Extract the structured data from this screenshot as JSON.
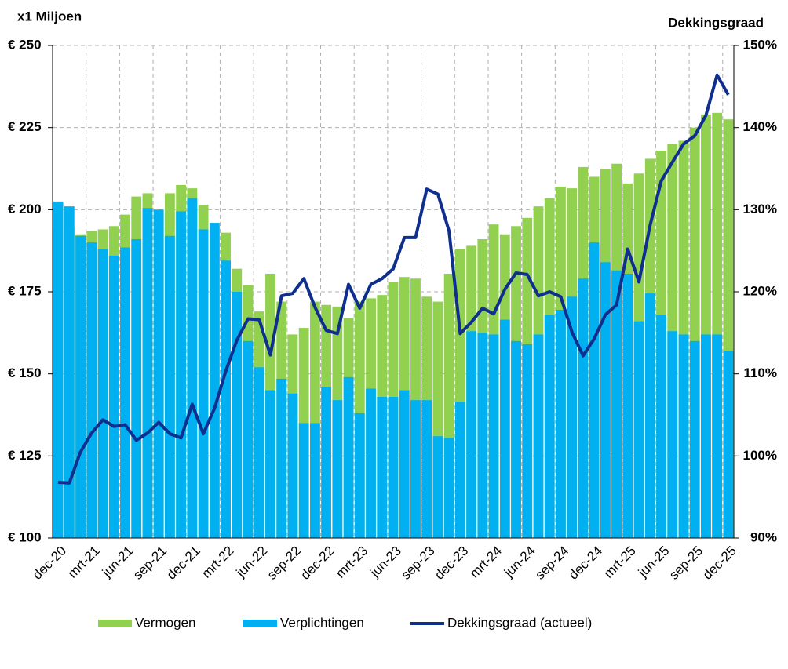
{
  "chart_data": {
    "type": "bar-line",
    "y_label": "x1 Miljoen",
    "y2_label": "Dekkingsgraad",
    "categories": [
      "dec-20",
      null,
      null,
      "mrt-21",
      null,
      null,
      "jun-21",
      null,
      null,
      "sep-21",
      null,
      null,
      "dec-21",
      null,
      null,
      "mrt-22",
      null,
      null,
      "jun-22",
      null,
      null,
      "sep-22",
      null,
      null,
      "dec-22",
      null,
      null,
      "mrt-23",
      null,
      null,
      "jun-23",
      null,
      null,
      "sep-23",
      null,
      null,
      "dec-23",
      null,
      null,
      "mrt-24",
      null,
      null,
      "jun-24",
      null,
      null,
      "sep-24",
      null,
      null,
      "dec-24",
      null,
      null,
      "mrt-25",
      null,
      null,
      "jun-25",
      null,
      null,
      "sep-25",
      null,
      null,
      "dec-25"
    ],
    "series": [
      {
        "name": "Vermogen",
        "color": "#92d050",
        "kind": "bar",
        "values": [
          194,
          194.5,
          192.5,
          193.5,
          194,
          195,
          198.5,
          204,
          205,
          200,
          205,
          207.5,
          206.5,
          201.5,
          195,
          193,
          182,
          177,
          169,
          180.5,
          172,
          162,
          164,
          172,
          171,
          170.5,
          167,
          172,
          173,
          174,
          178,
          179.5,
          179,
          173.5,
          172,
          180.5,
          188,
          189,
          191,
          195.5,
          192.5,
          195,
          197.5,
          201,
          203.5,
          207,
          206.5,
          213,
          210,
          212.5,
          214,
          208,
          211,
          215.5,
          218,
          220,
          221,
          225,
          229,
          229.5,
          227.5
        ]
      },
      {
        "name": "Verplichtingen",
        "color": "#00b0f0",
        "kind": "bar",
        "values": [
          202.5,
          201,
          192,
          190,
          188,
          186,
          188.5,
          191,
          200.5,
          200,
          192,
          199.5,
          203.5,
          194,
          196,
          184.5,
          175,
          160,
          152,
          145,
          148.5,
          144,
          135,
          135,
          146,
          142,
          149,
          138,
          145.5,
          143,
          143,
          145,
          142,
          142,
          131,
          130.5,
          141.5,
          163,
          162.5,
          162,
          166.5,
          160,
          159,
          162,
          168,
          169.5,
          173.5,
          179,
          190,
          184,
          181.5,
          180.5,
          166,
          174.5,
          168,
          163,
          162,
          160,
          162,
          162,
          157
        ]
      },
      {
        "name": "Dekkingsgraad (actueel)",
        "color": "#0e2f8e",
        "kind": "line",
        "axis": "y2",
        "values": [
          96.8,
          96.7,
          100.5,
          102.8,
          104.4,
          103.6,
          103.8,
          101.9,
          102.8,
          104.1,
          102.7,
          102.2,
          106.3,
          102.7,
          105.8,
          110.3,
          114.1,
          116.7,
          116.6,
          112.3,
          119.5,
          119.8,
          121.6,
          118.1,
          115.3,
          114.9,
          120.9,
          118,
          120.9,
          121.6,
          122.8,
          126.6,
          126.6,
          132.5,
          131.9,
          127.4,
          114.9,
          116.3,
          118,
          117.3,
          120.3,
          122.3,
          122.1,
          119.5,
          120,
          119.4,
          115.1,
          112.2,
          114.3,
          117.2,
          118.4,
          125.2,
          121.2,
          128.1,
          133.5,
          135.8,
          138,
          139,
          141.5,
          146.4,
          144
        ]
      }
    ],
    "ylim": [
      100,
      250
    ],
    "yticks": [
      {
        "value": 100,
        "label": "€ 100"
      },
      {
        "value": 125,
        "label": "€ 125"
      },
      {
        "value": 150,
        "label": "€ 150"
      },
      {
        "value": 175,
        "label": "€ 175"
      },
      {
        "value": 200,
        "label": "€ 200"
      },
      {
        "value": 225,
        "label": "€ 225"
      },
      {
        "value": 250,
        "label": "€ 250"
      }
    ],
    "y2lim": [
      90,
      150
    ],
    "y2ticks": [
      {
        "value": 90,
        "label": "90%"
      },
      {
        "value": 100,
        "label": "100%"
      },
      {
        "value": 110,
        "label": "110%"
      },
      {
        "value": 120,
        "label": "120%"
      },
      {
        "value": 130,
        "label": "130%"
      },
      {
        "value": 140,
        "label": "140%"
      },
      {
        "value": 150,
        "label": "150%"
      }
    ],
    "grid": true,
    "legend": "bottom"
  }
}
